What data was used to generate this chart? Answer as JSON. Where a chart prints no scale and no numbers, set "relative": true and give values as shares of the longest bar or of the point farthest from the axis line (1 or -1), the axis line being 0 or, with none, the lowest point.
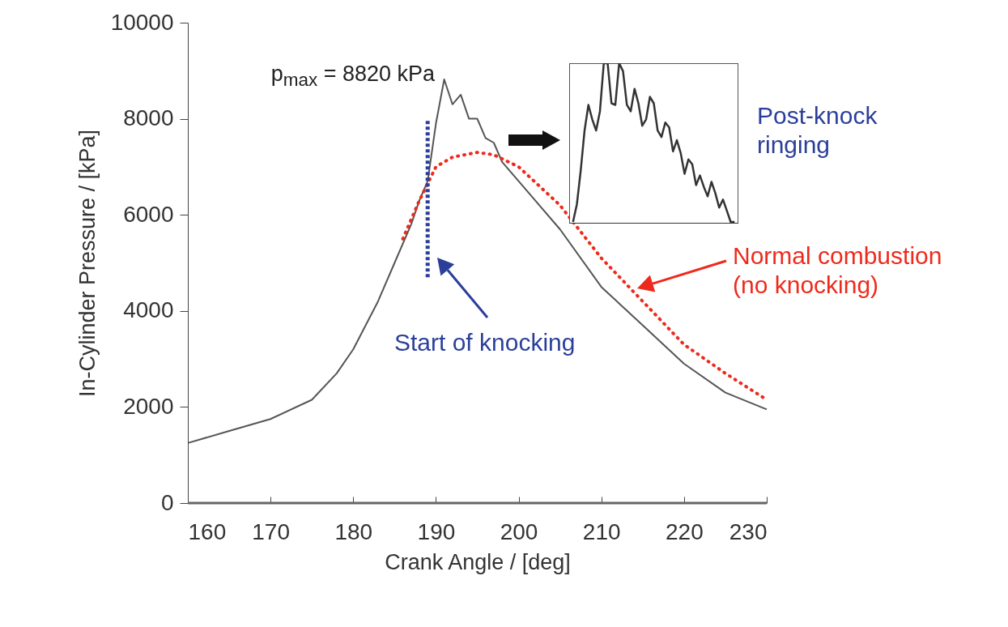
{
  "chart_data": [
    {
      "type": "line",
      "xlabel": "Crank Angle / [deg]",
      "ylabel": "In-Cylinder Pressure / [kPa]",
      "xlim": [
        160,
        230
      ],
      "ylim": [
        0,
        10000
      ],
      "xticks": [
        160,
        170,
        180,
        190,
        200,
        210,
        220,
        230
      ],
      "yticks": [
        0,
        2000,
        4000,
        6000,
        8000,
        10000
      ],
      "series": [
        {
          "color": "#555555",
          "line_style": "solid",
          "x": [
            160,
            165,
            170,
            175,
            178,
            180,
            183,
            185,
            187,
            188,
            189,
            190,
            191,
            192,
            193,
            194,
            195,
            196,
            197,
            198,
            200,
            202,
            205,
            210,
            215,
            220,
            225,
            230
          ],
          "values": [
            1250,
            1500,
            1750,
            2150,
            2700,
            3200,
            4200,
            5000,
            5800,
            6300,
            6700,
            7900,
            8820,
            8300,
            8500,
            8000,
            8000,
            7600,
            7500,
            7100,
            6700,
            6300,
            5700,
            4500,
            3700,
            2900,
            2300,
            1950
          ]
        },
        {
          "color": "#ee2a1c",
          "line_style": "dotted",
          "x": [
            186,
            188,
            190,
            192,
            195,
            197,
            200,
            205,
            210,
            215,
            220,
            225,
            230
          ],
          "values": [
            5500,
            6300,
            7000,
            7200,
            7300,
            7250,
            7000,
            6200,
            5100,
            4200,
            3300,
            2700,
            2150
          ]
        },
        {
          "color": "#2b3f9a",
          "line_style": "dotted",
          "x": [
            189,
            189
          ],
          "values": [
            4700,
            8000
          ]
        }
      ],
      "annotations": [
        {
          "text": "p$_{max}$ = 8820 kPa",
          "x": 191,
          "y": 8820
        },
        "Start of knocking",
        "Post-knock ringing",
        "Normal combustion\n(no knocking)"
      ]
    },
    {
      "type": "line",
      "relative": true,
      "categories": [
        null,
        null,
        null,
        null,
        null,
        null,
        null,
        null,
        null,
        null,
        null,
        null,
        null,
        null,
        null,
        null,
        null,
        null,
        null,
        null,
        null,
        null,
        null,
        null,
        null,
        null,
        null,
        null,
        null,
        null,
        null,
        null,
        null,
        null,
        null,
        null,
        null,
        null,
        null,
        null,
        null,
        null,
        null
      ],
      "series": [
        {
          "color": "#333333",
          "values": [
            0.01,
            0.12,
            0.33,
            0.58,
            0.74,
            0.65,
            0.58,
            0.7,
            1,
            1,
            0.75,
            0.74,
            1,
            0.95,
            0.74,
            0.7,
            0.84,
            0.75,
            0.61,
            0.65,
            0.79,
            0.75,
            0.58,
            0.54,
            0.63,
            0.6,
            0.45,
            0.52,
            0.44,
            0.31,
            0.4,
            0.37,
            0.24,
            0.3,
            0.23,
            0.17,
            0.26,
            0.19,
            0.1,
            0.15,
            0.08,
            0.01,
            0.01
          ]
        }
      ]
    }
  ]
}
